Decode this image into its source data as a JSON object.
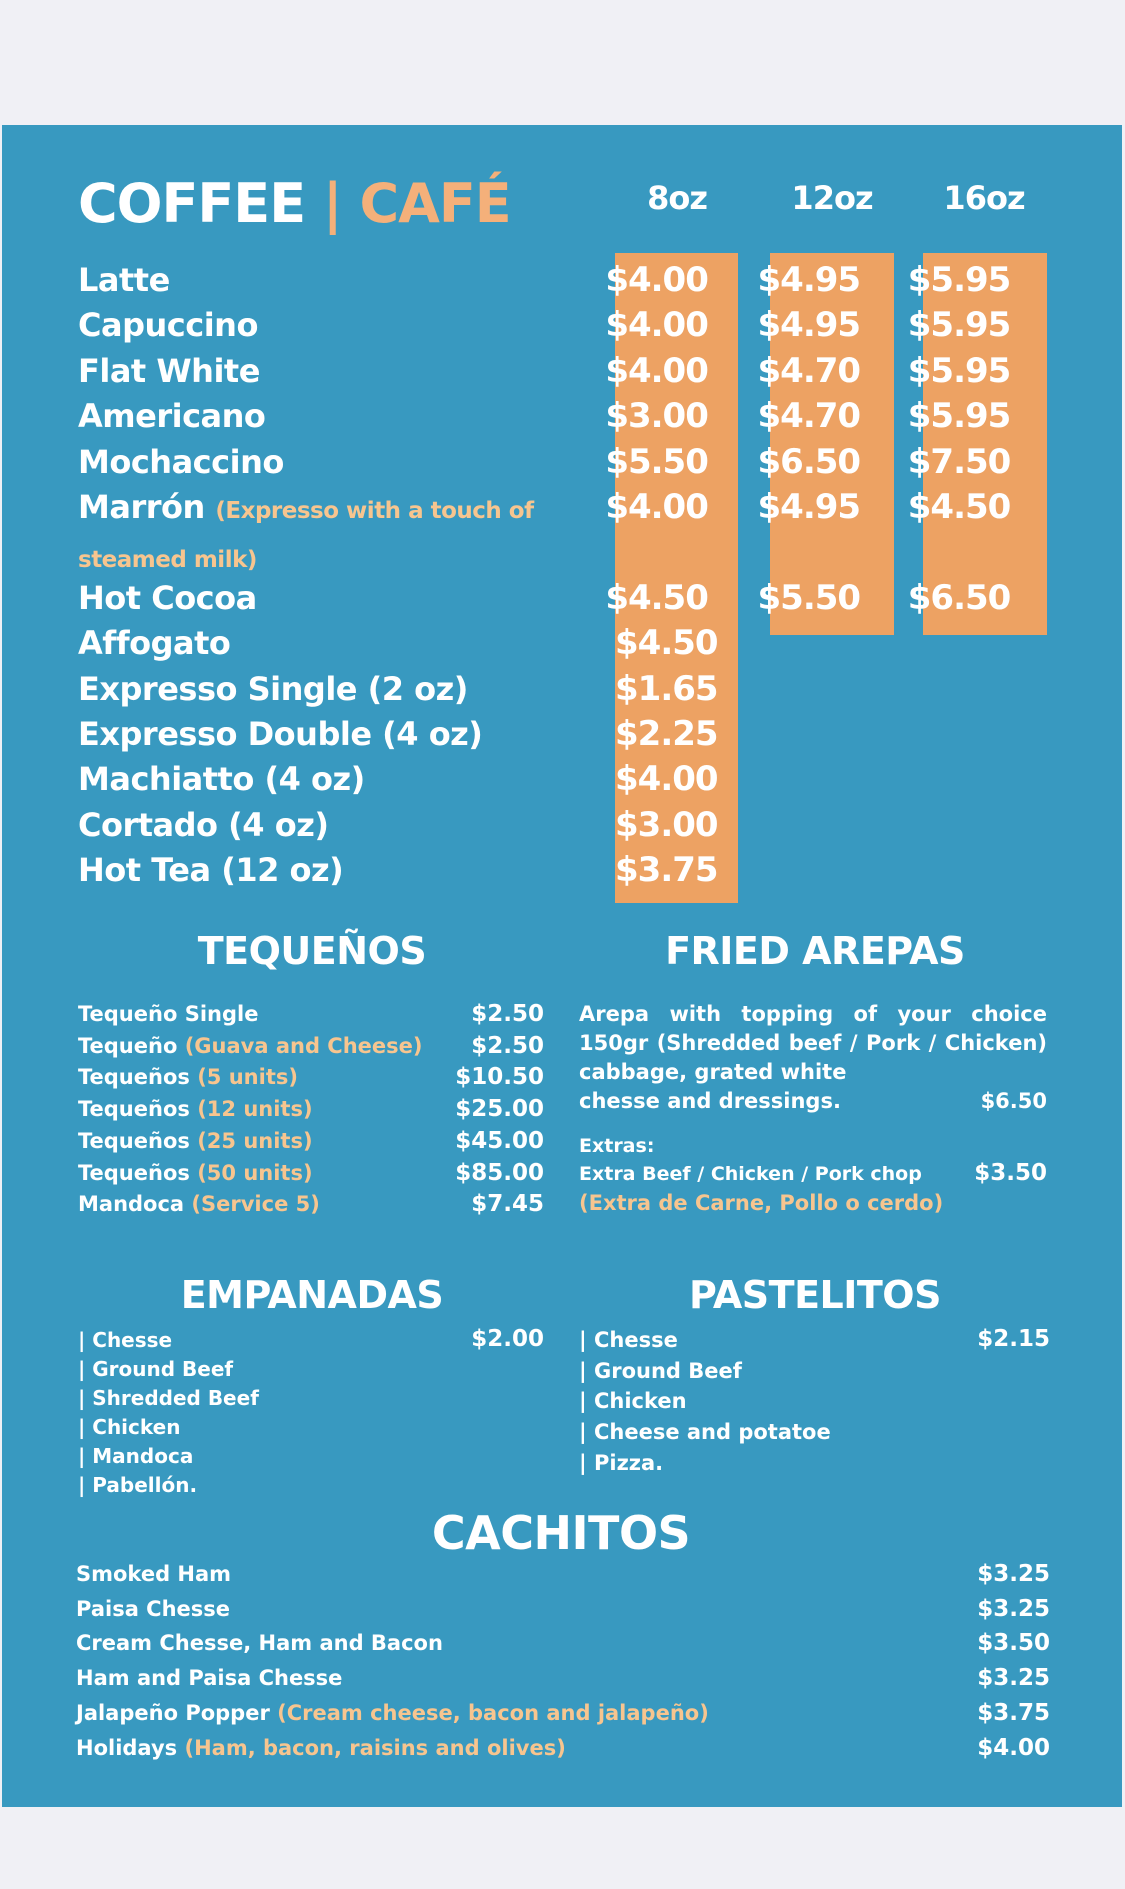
{
  "colors": {
    "panel": "#3899c0",
    "price_box": "#eda263",
    "accent_text": "#f7c58f",
    "background": "#f0f0f5"
  },
  "coffee": {
    "title_main": "COFFEE",
    "title_sep": "|",
    "title_accent": "CAFÉ",
    "sizes": [
      "8oz",
      "12oz",
      "16oz"
    ],
    "items": [
      {
        "name": "Latte",
        "prices": [
          "$4.00",
          "$4.95",
          "$5.95"
        ]
      },
      {
        "name": "Capuccino",
        "prices": [
          "$4.00",
          "$4.95",
          "$5.95"
        ]
      },
      {
        "name": "Flat White",
        "prices": [
          "$4.00",
          "$4.70",
          "$5.95"
        ]
      },
      {
        "name": "Americano",
        "prices": [
          "$3.00",
          "$4.70",
          "$5.95"
        ]
      },
      {
        "name": "Mochaccino",
        "prices": [
          "$5.50",
          "$6.50",
          "$7.50"
        ]
      },
      {
        "name": "Marrón",
        "note": "(Expresso with a touch of steamed milk)",
        "prices": [
          "$4.00",
          "$4.95",
          "$4.50"
        ]
      },
      {
        "name": "Hot Cocoa",
        "prices": [
          "$4.50",
          "$5.50",
          "$6.50"
        ]
      },
      {
        "name": "Affogato",
        "prices": [
          "$4.50"
        ]
      },
      {
        "name": "Expresso Single (2 oz)",
        "prices": [
          "$1.65"
        ]
      },
      {
        "name": "Expresso Double (4 oz)",
        "prices": [
          "$2.25"
        ]
      },
      {
        "name": "Machiatto (4 oz)",
        "prices": [
          "$4.00"
        ]
      },
      {
        "name": "Cortado (4 oz)",
        "prices": [
          "$3.00"
        ]
      },
      {
        "name": "Hot Tea (12 oz)",
        "prices": [
          "$3.75"
        ]
      }
    ]
  },
  "tequenos": {
    "title": "TEQUEÑOS",
    "items": [
      {
        "name": "Tequeño Single",
        "note": "",
        "price": "$2.50"
      },
      {
        "name": "Tequeño",
        "note": "(Guava and Cheese)",
        "price": "$2.50"
      },
      {
        "name": "Tequeños",
        "note": "(5 units)",
        "price": "$10.50"
      },
      {
        "name": "Tequeños",
        "note": "(12 units)",
        "price": "$25.00"
      },
      {
        "name": "Tequeños",
        "note": " (25 units)",
        "price": "$45.00"
      },
      {
        "name": "Tequeños",
        "note": " (50 units)",
        "price": "$85.00"
      },
      {
        "name": "Mandoca",
        "note": "(Service 5)",
        "price": "$7.45"
      }
    ]
  },
  "arepas": {
    "title": "FRIED AREPAS",
    "description": "Arepa with topping of your choice 150gr (Shredded beef / Pork / Chicken) cabbage, grated white",
    "description_end": "chesse and dressings.",
    "price": "$6.50",
    "extras_label": "Extras:",
    "extra_item": "Extra Beef / Chicken / Pork chop",
    "extra_price": "$3.50",
    "extra_note": "(Extra de Carne, Pollo o cerdo)"
  },
  "empanadas": {
    "title": "EMPANADAS",
    "price": "$2.00",
    "items": [
      "| Chesse",
      "| Ground Beef",
      "| Shredded Beef",
      "| Chicken",
      "| Mandoca",
      "| Pabellón."
    ]
  },
  "pastelitos": {
    "title": "PASTELITOS",
    "price": "$2.15",
    "items": [
      "| Chesse",
      "| Ground Beef",
      "| Chicken",
      "| Cheese and potatoe",
      "| Pizza."
    ]
  },
  "cachitos": {
    "title": "CACHITOS",
    "items": [
      {
        "name": "Smoked Ham",
        "note": "",
        "price": "$3.25"
      },
      {
        "name": "Paisa Chesse",
        "note": "",
        "price": "$3.25"
      },
      {
        "name": "Cream Chesse, Ham and Bacon",
        "note": "",
        "price": "$3.50"
      },
      {
        "name": "Ham and Paisa Chesse",
        "note": "",
        "price": "$3.25"
      },
      {
        "name": "Jalapeño Popper",
        "note": "(Cream cheese, bacon and jalapeño)",
        "price": "$3.75"
      },
      {
        "name": "Holidays",
        "note": "(Ham, bacon, raisins and olives)",
        "price": "$4.00"
      }
    ]
  }
}
